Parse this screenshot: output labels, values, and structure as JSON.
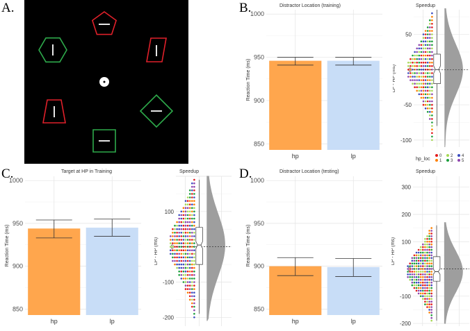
{
  "panel_labels": {
    "a": "A.",
    "b": "B.",
    "c": "C.",
    "d": "D."
  },
  "colors": {
    "hp_bar": "#FFA64D",
    "lp_bar": "#C8DDF7",
    "stim_red": "#E0202A",
    "stim_green": "#2EAA4B",
    "violin": "#9E9E9E",
    "grid": "#E6E6E6"
  },
  "stimulus": {
    "shapes": [
      {
        "shape": "pentagon",
        "color": "red",
        "line": "horizontal"
      },
      {
        "shape": "hexagon",
        "color": "green",
        "line": "vertical"
      },
      {
        "shape": "trapezoid",
        "color": "red",
        "line": "vertical"
      },
      {
        "shape": "trapezoid",
        "color": "red",
        "line": "vertical"
      },
      {
        "shape": "diamond",
        "color": "green",
        "line": "horizontal"
      },
      {
        "shape": "square",
        "color": "green",
        "line": "horizontal"
      }
    ],
    "fixation": "dot"
  },
  "legend": {
    "title": "hp_loc",
    "items": [
      {
        "label": "0",
        "color": "#E41A1C"
      },
      {
        "label": "1",
        "color": "#FF7F00"
      },
      {
        "label": "2",
        "color": "#A6D854"
      },
      {
        "label": "3",
        "color": "#1B9E3C"
      },
      {
        "label": "4",
        "color": "#3B4CC0"
      },
      {
        "label": "5",
        "color": "#8E44AD"
      }
    ]
  },
  "chart_data": [
    {
      "id": "B-bar",
      "type": "bar",
      "title": "Distractor  Location (training)",
      "categories": [
        "hp",
        "lp"
      ],
      "values": [
        946,
        946
      ],
      "error_low": [
        941,
        941
      ],
      "error_high": [
        950,
        950
      ],
      "ylabel": "Reaction Time (ms)",
      "xlabel": "",
      "ylim": [
        843,
        1005
      ],
      "yticks": [
        850,
        900,
        950,
        1000
      ],
      "grid": true
    },
    {
      "id": "B-raincloud",
      "type": "scatter",
      "title": "Speedup",
      "ylabel": "LP - HP (ms)",
      "ylim": [
        -110,
        85
      ],
      "yticks": [
        -100,
        -50,
        0,
        50
      ],
      "reference_line": 0,
      "box": {
        "q1": -20,
        "median": 0,
        "q3": 22,
        "notch": 5,
        "whisker_low": -80,
        "whisker_high": 85
      },
      "points": {
        "min": -100,
        "max": 80,
        "step": 5,
        "count_peak": 12
      }
    },
    {
      "id": "C-bar",
      "type": "bar",
      "title": "Target at HP in Training",
      "categories": [
        "hp",
        "lp"
      ],
      "values": [
        944,
        945
      ],
      "error_low": [
        933,
        935
      ],
      "error_high": [
        954,
        955
      ],
      "ylabel": "Reaction Time (ms)",
      "xlabel": "",
      "ylim": [
        843,
        1005
      ],
      "yticks": [
        850,
        900,
        950,
        1000
      ],
      "grid": true
    },
    {
      "id": "C-raincloud",
      "type": "scatter",
      "title": "Speedup",
      "ylabel": "LP - HP (ms)",
      "ylim": [
        -225,
        200
      ],
      "yticks": [
        -200,
        -100,
        0,
        100
      ],
      "reference_line": 0,
      "box": {
        "q1": -50,
        "median": 5,
        "q3": 55,
        "notch": 10,
        "whisker_low": -190,
        "whisker_high": 190
      },
      "points": {
        "min": -200,
        "max": 190,
        "step": 10,
        "count_peak": 12
      }
    },
    {
      "id": "D-bar",
      "type": "bar",
      "title": "Distractor  Location (testing)",
      "categories": [
        "hp",
        "lp"
      ],
      "values": [
        900,
        899
      ],
      "error_low": [
        889,
        888
      ],
      "error_high": [
        910,
        909
      ],
      "ylabel": "Reaction Time (ms)",
      "xlabel": "",
      "ylim": [
        843,
        1005
      ],
      "yticks": [
        850,
        900,
        950,
        1000
      ],
      "grid": true
    },
    {
      "id": "D-raincloud",
      "type": "scatter",
      "title": "Speedup",
      "ylabel": "LP - HP (ms)",
      "ylim": [
        -210,
        340
      ],
      "yticks": [
        -200,
        -100,
        0,
        100,
        200,
        300
      ],
      "reference_line": 0,
      "box": {
        "q1": -45,
        "median": -10,
        "q3": 45,
        "notch": 10,
        "whisker_low": -190,
        "whisker_high": 160
      },
      "points": {
        "min": -190,
        "max": 150,
        "step": 10,
        "count_peak": 12
      }
    }
  ]
}
